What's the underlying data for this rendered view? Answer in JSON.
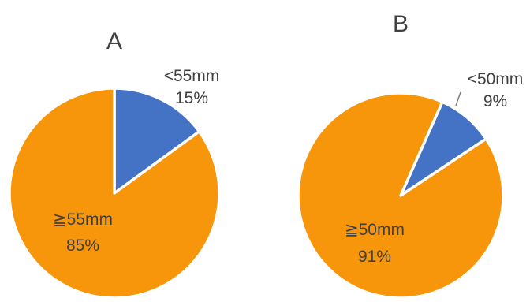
{
  "chart_data": [
    {
      "type": "pie",
      "title": "A",
      "start_angle_deg": 0,
      "direction": "clockwise",
      "colors": [
        "#4472c4",
        "#f7960a"
      ],
      "slices": [
        {
          "label": "<55mm",
          "value": 15,
          "value_label": "15%",
          "color": "#4472c4"
        },
        {
          "label": "≧55mm",
          "value": 85,
          "value_label": "85%",
          "color": "#f7960a"
        }
      ]
    },
    {
      "type": "pie",
      "title": "B",
      "start_angle_deg": 24,
      "direction": "clockwise",
      "colors": [
        "#4472c4",
        "#f7960a"
      ],
      "slices": [
        {
          "label": "<50mm",
          "value": 9,
          "value_label": "9%",
          "color": "#4472c4"
        },
        {
          "label": "≧50mm",
          "value": 91,
          "value_label": "91%",
          "color": "#f7960a"
        }
      ]
    }
  ]
}
